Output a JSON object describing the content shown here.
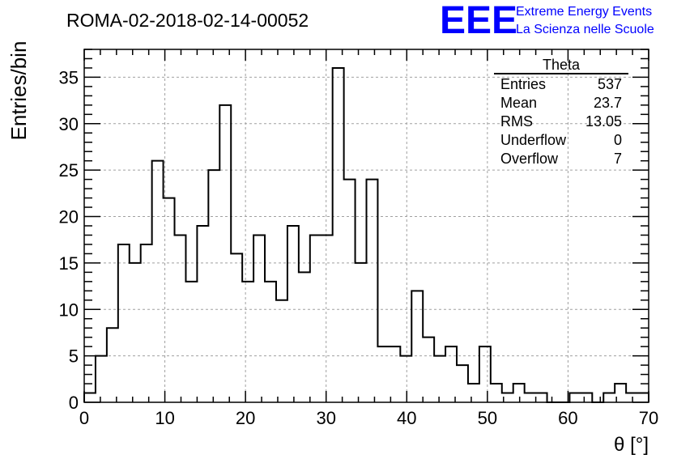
{
  "run_title": "ROMA-02-2018-02-14-00052",
  "logo": {
    "mark": "EEE",
    "line1": "Extreme Energy Events",
    "line2": "La Scienza nelle Scuole",
    "color": "#0000ff"
  },
  "stats": {
    "name": "Theta",
    "rows": [
      {
        "label": "Entries",
        "value": "537"
      },
      {
        "label": "Mean",
        "value": "23.7"
      },
      {
        "label": "RMS",
        "value": "13.05"
      },
      {
        "label": "Underflow",
        "value": "0"
      },
      {
        "label": "Overflow",
        "value": "7"
      }
    ]
  },
  "chart_data": {
    "type": "bar",
    "style": "step-histogram",
    "title": "ROMA-02-2018-02-14-00052",
    "xlabel": "θ [°]",
    "ylabel": "Entries/bin",
    "xlim": [
      0,
      70
    ],
    "ylim": [
      0,
      38
    ],
    "bin_width": 1.4,
    "x_ticks": [
      0,
      10,
      20,
      30,
      40,
      50,
      60,
      70
    ],
    "y_ticks": [
      0,
      5,
      10,
      15,
      20,
      25,
      30,
      35
    ],
    "grid": true,
    "legend_position": "top-right",
    "values": [
      1,
      5,
      8,
      17,
      15,
      17,
      26,
      22,
      18,
      13,
      19,
      25,
      32,
      16,
      13,
      18,
      13,
      11,
      19,
      14,
      18,
      18,
      36,
      24,
      15,
      24,
      6,
      6,
      5,
      12,
      7,
      5,
      6,
      4,
      2,
      6,
      2,
      1,
      2,
      1,
      1,
      0,
      0,
      1,
      1,
      0,
      1,
      2,
      1,
      1
    ]
  }
}
